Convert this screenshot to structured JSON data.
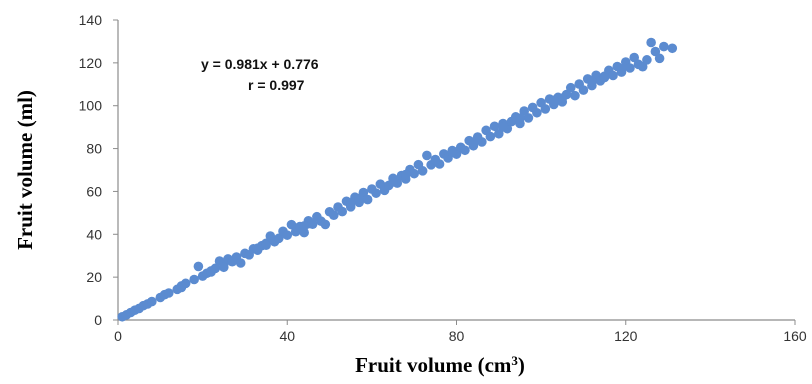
{
  "chart_data": {
    "type": "scatter",
    "title": "",
    "xlabel": "Fruit volume (cm",
    "xlabel_superscript": "3",
    "xlabel_suffix": ")",
    "ylabel": "Fruit volume (ml)",
    "xlim": [
      0,
      160
    ],
    "ylim": [
      0,
      140
    ],
    "xticks": [
      0,
      40,
      80,
      120,
      160
    ],
    "yticks": [
      0,
      20,
      40,
      60,
      80,
      100,
      120,
      140
    ],
    "xtick_labels": [
      "0",
      "40",
      "80",
      "120",
      "160"
    ],
    "ytick_labels": [
      "0",
      "20",
      "40",
      "60",
      "80",
      "100",
      "120",
      "140"
    ],
    "grid": false,
    "legend": "none",
    "annotations": [
      "y = 0.981x + 0.776",
      "r = 0.997"
    ],
    "marker_color": "#5b8bd0",
    "series": [
      {
        "points": [
          [
            1,
            1.5
          ],
          [
            2,
            2.4
          ],
          [
            3,
            3.5
          ],
          [
            4,
            4.6
          ],
          [
            5,
            5.4
          ],
          [
            6,
            6.7
          ],
          [
            7,
            7.5
          ],
          [
            8,
            8.6
          ],
          [
            10,
            10.5
          ],
          [
            11,
            11.8
          ],
          [
            12,
            12.6
          ],
          [
            14,
            14.3
          ],
          [
            15,
            15.2
          ],
          [
            16,
            17.1
          ],
          [
            18,
            18.9
          ],
          [
            19,
            25
          ],
          [
            20,
            20.5
          ],
          [
            21,
            21.8
          ],
          [
            22,
            22.4
          ],
          [
            23,
            24.1
          ],
          [
            24,
            27.5
          ],
          [
            25,
            26.2
          ],
          [
            26,
            28.5
          ],
          [
            27,
            27.2
          ],
          [
            28,
            29.4
          ],
          [
            29,
            26.6
          ],
          [
            30,
            31.1
          ],
          [
            31,
            30.4
          ],
          [
            32,
            33.2
          ],
          [
            33,
            32.6
          ],
          [
            34,
            34.7
          ],
          [
            35,
            35.8
          ],
          [
            36,
            39.2
          ],
          [
            37,
            36.5
          ],
          [
            38,
            38.1
          ],
          [
            39,
            41.4
          ],
          [
            40,
            39.6
          ],
          [
            41,
            44.5
          ],
          [
            42,
            41.2
          ],
          [
            43,
            43.6
          ],
          [
            44,
            40.8
          ],
          [
            45,
            46.3
          ],
          [
            46,
            44.7
          ],
          [
            47,
            48.2
          ],
          [
            48,
            46.1
          ],
          [
            49,
            44.6
          ],
          [
            50,
            50.5
          ],
          [
            51,
            48.9
          ],
          [
            52,
            52.7
          ],
          [
            53,
            50.6
          ],
          [
            54,
            55.4
          ],
          [
            55,
            52.8
          ],
          [
            56,
            57.3
          ],
          [
            57,
            54.9
          ],
          [
            58,
            59.5
          ],
          [
            59,
            56.2
          ],
          [
            60,
            61.1
          ],
          [
            61,
            59.2
          ],
          [
            62,
            63.4
          ],
          [
            63,
            60.5
          ],
          [
            64,
            62.8
          ],
          [
            65,
            66.1
          ],
          [
            66,
            63.9
          ],
          [
            67,
            67.4
          ],
          [
            68,
            65.8
          ],
          [
            69,
            70.2
          ],
          [
            70,
            68.3
          ],
          [
            71,
            72.5
          ],
          [
            72,
            69.6
          ],
          [
            73,
            76.8
          ],
          [
            74,
            72.4
          ],
          [
            75,
            74.3
          ],
          [
            76,
            72.8
          ],
          [
            77,
            77.5
          ],
          [
            78,
            75.6
          ],
          [
            79,
            79.1
          ],
          [
            80,
            77.4
          ],
          [
            81,
            80.6
          ],
          [
            82,
            79.2
          ],
          [
            83,
            83.7
          ],
          [
            84,
            81.3
          ],
          [
            85,
            85.4
          ],
          [
            86,
            83.1
          ],
          [
            87,
            88.5
          ],
          [
            88,
            85.6
          ],
          [
            89,
            90.4
          ],
          [
            90,
            86.9
          ],
          [
            91,
            91.7
          ],
          [
            92,
            89.3
          ],
          [
            93,
            92.6
          ],
          [
            94,
            94.8
          ],
          [
            95,
            91.7
          ],
          [
            96,
            97.5
          ],
          [
            97,
            94.3
          ],
          [
            98,
            99.2
          ],
          [
            99,
            96.7
          ],
          [
            100,
            101.4
          ],
          [
            101,
            98.5
          ],
          [
            102,
            103.1
          ],
          [
            103,
            100.6
          ],
          [
            104,
            103.9
          ],
          [
            105,
            101.8
          ],
          [
            106,
            105.2
          ],
          [
            107,
            108.4
          ],
          [
            108,
            104.7
          ],
          [
            109,
            110.1
          ],
          [
            110,
            107.3
          ],
          [
            111,
            112.5
          ],
          [
            112,
            109.4
          ],
          [
            113,
            114.2
          ],
          [
            114,
            111.6
          ],
          [
            115,
            113.8
          ],
          [
            116,
            116.5
          ],
          [
            117,
            114.1
          ],
          [
            118,
            118.3
          ],
          [
            119,
            115.7
          ],
          [
            120,
            120.4
          ],
          [
            121,
            117.6
          ],
          [
            122,
            122.5
          ],
          [
            123,
            119.3
          ],
          [
            124,
            118.2
          ],
          [
            125,
            121.4
          ],
          [
            126,
            129.5
          ],
          [
            127,
            125.3
          ],
          [
            128,
            122.1
          ],
          [
            129,
            127.6
          ],
          [
            131,
            126.8
          ],
          [
            15,
            15.9
          ],
          [
            25,
            24.6
          ],
          [
            35,
            34.9
          ],
          [
            45,
            44.9
          ],
          [
            55,
            54.7
          ],
          [
            65,
            64.4
          ],
          [
            75,
            74.9
          ],
          [
            85,
            84.1
          ],
          [
            95,
            94.2
          ],
          [
            105,
            103.6
          ],
          [
            115,
            113.2
          ],
          [
            22,
            22.9
          ],
          [
            33,
            33.5
          ],
          [
            44,
            43.9
          ],
          [
            57,
            56.8
          ],
          [
            68,
            67.9
          ],
          [
            79,
            78.2
          ],
          [
            91,
            90.1
          ],
          [
            103,
            102.5
          ],
          [
            112,
            111.2
          ],
          [
            119,
            117.2
          ]
        ]
      }
    ]
  }
}
